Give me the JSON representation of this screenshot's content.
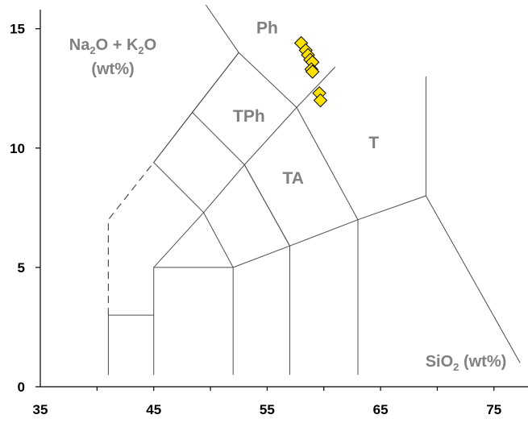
{
  "chart_data": {
    "type": "scatter",
    "title": "",
    "xlabel": {
      "prefix": "SiO",
      "sub": "2",
      "suffix": " (wt%)"
    },
    "ylabel": {
      "line1": [
        {
          "t": "Na",
          "sub": false
        },
        {
          "t": "2",
          "sub": true
        },
        {
          "t": "O + K",
          "sub": false
        },
        {
          "t": "2",
          "sub": true
        },
        {
          "t": "O",
          "sub": false
        }
      ],
      "line2": "(wt%)"
    },
    "xlim": [
      35,
      78
    ],
    "ylim": [
      0,
      15.8
    ],
    "x_ticks": [
      35,
      45,
      55,
      65,
      75
    ],
    "y_ticks": [
      0,
      5,
      10,
      15
    ],
    "grid": false,
    "marker": {
      "shape": "diamond",
      "fill": "#ffe100",
      "stroke": "#000000"
    },
    "field_labels": [
      {
        "text": "Ph",
        "x": 55,
        "y": 14.8
      },
      {
        "text": "TPh",
        "x": 53.4,
        "y": 11.1
      },
      {
        "text": "TA",
        "x": 57.3,
        "y": 8.5
      },
      {
        "text": "T",
        "x": 64.4,
        "y": 10.0
      }
    ],
    "boundaries": [
      {
        "style": "solid",
        "points": [
          [
            41,
            0.5
          ],
          [
            41,
            3
          ],
          [
            45,
            3
          ],
          [
            45,
            0.5
          ]
        ]
      },
      {
        "style": "solid",
        "points": [
          [
            45,
            3
          ],
          [
            45,
            5
          ],
          [
            52,
            5
          ],
          [
            52,
            0.5
          ]
        ]
      },
      {
        "style": "solid",
        "points": [
          [
            45,
            5
          ],
          [
            49.4,
            7.3
          ],
          [
            52,
            5
          ]
        ]
      },
      {
        "style": "solid",
        "points": [
          [
            49.4,
            7.3
          ],
          [
            53,
            9.3
          ],
          [
            57,
            5.9
          ],
          [
            57,
            0.5
          ]
        ]
      },
      {
        "style": "solid",
        "points": [
          [
            52,
            5
          ],
          [
            57,
            5.9
          ],
          [
            63,
            7
          ],
          [
            69,
            8
          ]
        ]
      },
      {
        "style": "solid",
        "points": [
          [
            57,
            5.9
          ],
          [
            53,
            9.3
          ]
        ]
      },
      {
        "style": "solid",
        "points": [
          [
            63,
            0.5
          ],
          [
            63,
            7
          ],
          [
            57.6,
            11.7
          ],
          [
            53,
            9.3
          ],
          [
            48.4,
            11.5
          ],
          [
            45,
            9.4
          ],
          [
            49.4,
            7.3
          ]
        ]
      },
      {
        "style": "solid",
        "points": [
          [
            45,
            9.4
          ],
          [
            52.5,
            14
          ],
          [
            57.6,
            11.7
          ]
        ]
      },
      {
        "style": "solid",
        "points": [
          [
            48.4,
            11.5
          ],
          [
            52.5,
            14
          ]
        ]
      },
      {
        "style": "solid",
        "points": [
          [
            52.5,
            14
          ],
          [
            49.6,
            16
          ]
        ]
      },
      {
        "style": "solid",
        "points": [
          [
            57.6,
            11.7
          ],
          [
            61,
            13.4
          ]
        ]
      },
      {
        "style": "solid",
        "points": [
          [
            69,
            8
          ],
          [
            69,
            13
          ]
        ]
      },
      {
        "style": "solid",
        "points": [
          [
            69,
            8
          ],
          [
            77.3,
            1
          ]
        ]
      },
      {
        "style": "dashed",
        "points": [
          [
            41,
            3
          ],
          [
            41,
            7
          ],
          [
            45,
            9.4
          ]
        ]
      }
    ],
    "series": [
      {
        "points": [
          {
            "x": 58.0,
            "y": 14.4
          },
          {
            "x": 58.4,
            "y": 14.1
          },
          {
            "x": 58.6,
            "y": 13.9
          },
          {
            "x": 58.8,
            "y": 13.7
          },
          {
            "x": 59.0,
            "y": 13.6
          },
          {
            "x": 58.9,
            "y": 13.3
          },
          {
            "x": 59.0,
            "y": 13.2
          },
          {
            "x": 59.6,
            "y": 12.3
          },
          {
            "x": 59.7,
            "y": 12.0
          }
        ]
      }
    ]
  }
}
